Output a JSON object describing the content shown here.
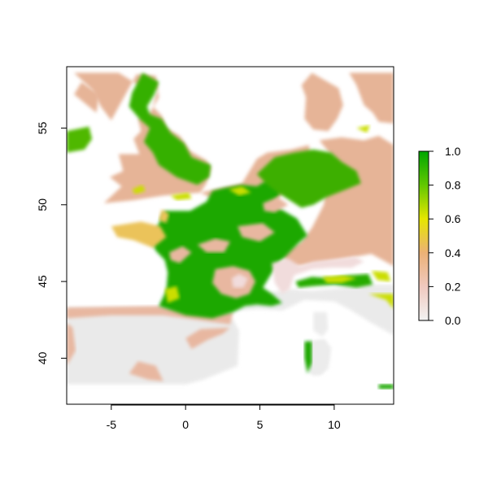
{
  "chart_data": {
    "type": "heatmap",
    "title": "",
    "xlabel": "",
    "ylabel": "",
    "xlim": [
      -8,
      14
    ],
    "ylim": [
      37,
      59
    ],
    "x_ticks": [
      -5,
      0,
      5,
      10
    ],
    "y_ticks": [
      40,
      45,
      50,
      55
    ],
    "grid": false,
    "legend_position": "right",
    "colorbar": {
      "range": [
        0,
        1
      ],
      "ticks": [
        "0.0",
        "0.2",
        "0.4",
        "0.6",
        "0.8",
        "1.0"
      ],
      "colors": [
        "#f2f2f2",
        "#ecb176",
        "#e6e600",
        "#62c800",
        "#00a600"
      ]
    },
    "map_layers": [
      {
        "name": "land-background",
        "value": 0.05,
        "color": "#eaeaea"
      },
      {
        "name": "iberia-north-band",
        "value": 0.25,
        "color": "#e8b7a0"
      },
      {
        "name": "britain-low",
        "value": 0.3,
        "color": "#e6b497"
      },
      {
        "name": "scandinavia",
        "value": 0.3,
        "color": "#e6b497"
      },
      {
        "name": "central-europe",
        "value": 0.3,
        "color": "#e6b497"
      },
      {
        "name": "britain-east",
        "value": 0.85,
        "color": "#35b000"
      },
      {
        "name": "ireland",
        "value": 0.7,
        "color": "#4fb800"
      },
      {
        "name": "france-lowlands",
        "value": 0.9,
        "color": "#1aa800"
      },
      {
        "name": "benelux-germany",
        "value": 0.8,
        "color": "#3caf00"
      },
      {
        "name": "po-valley",
        "value": 0.85,
        "color": "#25ab00"
      },
      {
        "name": "massif-central",
        "value": 0.25,
        "color": "#e8b7a0"
      },
      {
        "name": "brittany",
        "value": 0.45,
        "color": "#ebc35a"
      },
      {
        "name": "alps",
        "value": 0.1,
        "color": "#f1dcdc"
      },
      {
        "name": "yellow-patches",
        "value": 0.55,
        "color": "#cbde00"
      },
      {
        "name": "sardinia-corsica",
        "value": 0.1,
        "color": "#ececec"
      },
      {
        "name": "corsica-green",
        "value": 0.9,
        "color": "#1aa800"
      }
    ]
  }
}
